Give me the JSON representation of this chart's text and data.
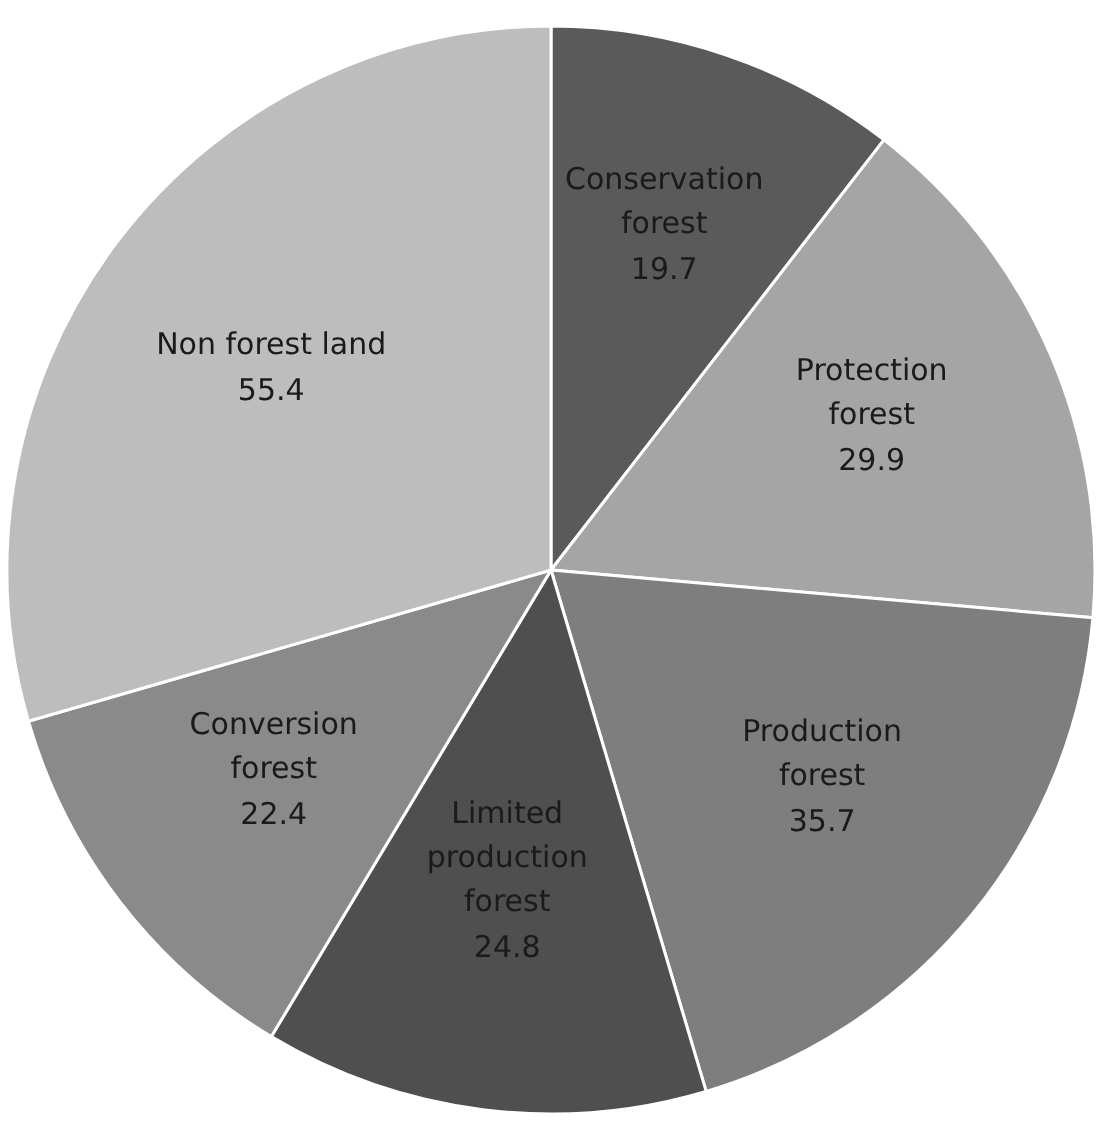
{
  "chart_data": {
    "type": "pie",
    "categories": [
      "Conservation forest",
      "Protection forest",
      "Production forest",
      "Limited production forest",
      "Conversion forest",
      "Non forest land"
    ],
    "values": [
      19.7,
      29.9,
      35.7,
      24.8,
      22.4,
      55.4
    ],
    "colors": [
      "#5a5a5a",
      "#a5a5a5",
      "#7e7e7e",
      "#4f4f4f",
      "#8a8a8a",
      "#bdbdbd"
    ],
    "data_labels": true
  }
}
